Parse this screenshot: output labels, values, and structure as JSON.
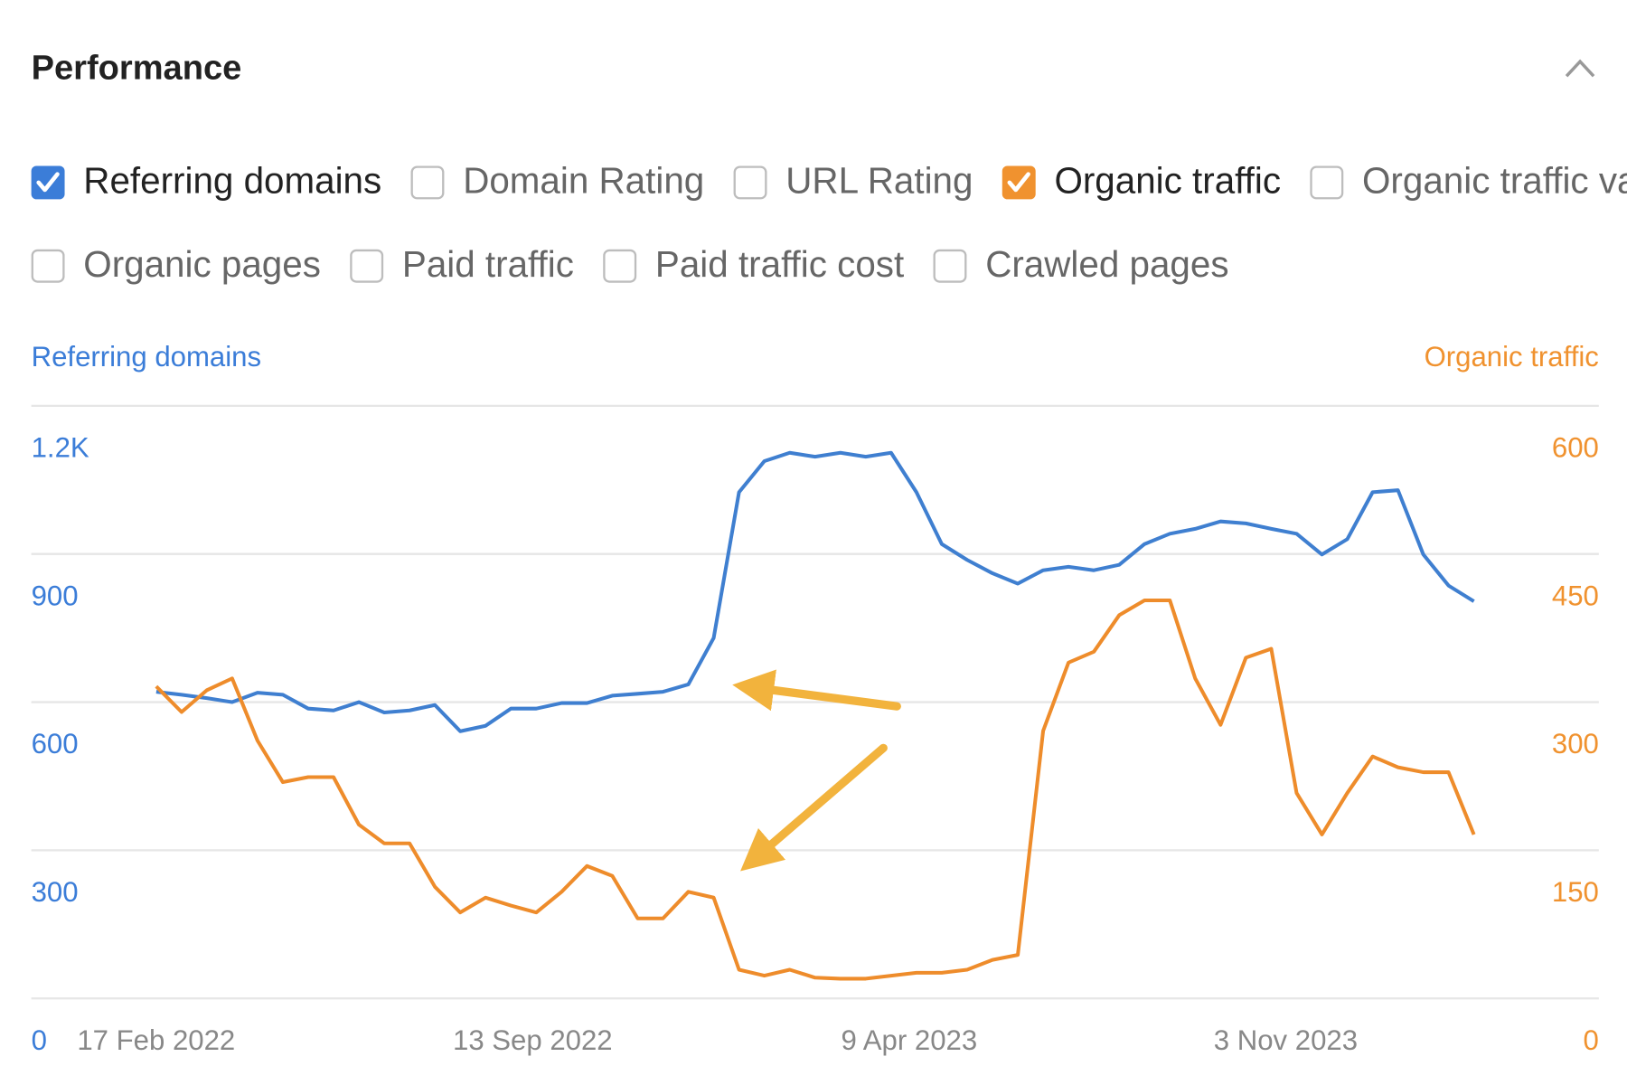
{
  "header": {
    "title": "Performance"
  },
  "metrics": [
    [
      {
        "label": "Referring domains",
        "checked": true,
        "color": "#3b7dd8"
      },
      {
        "label": "Domain Rating",
        "checked": false
      },
      {
        "label": "URL Rating",
        "checked": false
      },
      {
        "label": "Organic traffic",
        "checked": true,
        "color": "#f0922f"
      },
      {
        "label": "Organic traffic value",
        "checked": false
      }
    ],
    [
      {
        "label": "Organic pages",
        "checked": false
      },
      {
        "label": "Paid traffic",
        "checked": false
      },
      {
        "label": "Paid traffic cost",
        "checked": false
      },
      {
        "label": "Crawled pages",
        "checked": false
      }
    ]
  ],
  "chart_data": {
    "type": "line",
    "y_label": "Referring domains",
    "y2_label": "Organic traffic",
    "x": [
      "2022-02-17",
      "2022-03-03",
      "2022-03-17",
      "2022-03-31",
      "2022-04-14",
      "2022-04-28",
      "2022-05-12",
      "2022-05-26",
      "2022-06-09",
      "2022-06-23",
      "2022-07-07",
      "2022-07-21",
      "2022-08-04",
      "2022-08-18",
      "2022-09-01",
      "2022-09-15",
      "2022-09-29",
      "2022-10-13",
      "2022-10-27",
      "2022-11-10",
      "2022-11-24",
      "2022-12-08",
      "2022-12-22",
      "2023-01-05",
      "2023-01-19",
      "2023-02-02",
      "2023-02-16",
      "2023-03-02",
      "2023-03-16",
      "2023-03-30",
      "2023-04-13",
      "2023-04-27",
      "2023-05-11",
      "2023-05-25",
      "2023-06-08",
      "2023-06-22",
      "2023-07-06",
      "2023-07-20",
      "2023-08-03",
      "2023-08-17",
      "2023-08-31",
      "2023-09-14",
      "2023-09-28",
      "2023-10-12",
      "2023-10-26",
      "2023-11-09",
      "2023-11-23",
      "2023-12-07",
      "2023-12-21",
      "2024-01-04",
      "2024-01-18",
      "2024-02-01",
      "2024-02-15"
    ],
    "xlim": [
      "2021-12-10",
      "2024-04-24"
    ],
    "xticks": [
      {
        "value": "2022-02-17",
        "label": "17 Feb 2022"
      },
      {
        "value": "2022-09-13",
        "label": "13 Sep 2022"
      },
      {
        "value": "2023-04-09",
        "label": "9 Apr 2023"
      },
      {
        "value": "2023-11-03",
        "label": "3 Nov 2023"
      }
    ],
    "ylim": [
      0,
      1200
    ],
    "yticks": [
      0,
      300,
      600,
      900,
      {
        "value": 1200,
        "label": "1.2K"
      }
    ],
    "y2lim": [
      0,
      600
    ],
    "y2ticks": [
      0,
      150,
      300,
      450,
      600
    ],
    "grid": true,
    "series": [
      {
        "name": "Referring domains",
        "color": "#3f7fd0",
        "values": [
          621,
          615,
          608,
          600,
          619,
          615,
          587,
          583,
          600,
          579,
          583,
          594,
          541,
          552,
          587,
          587,
          598,
          598,
          613,
          617,
          621,
          636,
          730,
          1025,
          1088,
          1105,
          1097,
          1105,
          1097,
          1105,
          1025,
          920,
          888,
          861,
          840,
          867,
          874,
          867,
          878,
          920,
          941,
          951,
          966,
          962,
          951,
          941,
          899,
          930,
          1025,
          1029,
          899,
          836,
          804
        ]
      },
      {
        "name": "Organic traffic",
        "color": "#ee8c2b",
        "axis": "y2",
        "values": [
          316,
          290,
          312,
          324,
          261,
          219,
          224,
          224,
          176,
          157,
          157,
          113,
          87,
          102,
          94,
          87,
          108,
          134,
          124,
          81,
          81,
          108,
          102,
          29,
          23,
          29,
          21,
          20,
          20,
          23,
          26,
          26,
          29,
          39,
          44,
          271,
          340,
          351,
          388,
          403,
          403,
          324,
          277,
          345,
          354,
          208,
          166,
          208,
          245,
          234,
          229,
          229,
          166
        ]
      }
    ]
  }
}
